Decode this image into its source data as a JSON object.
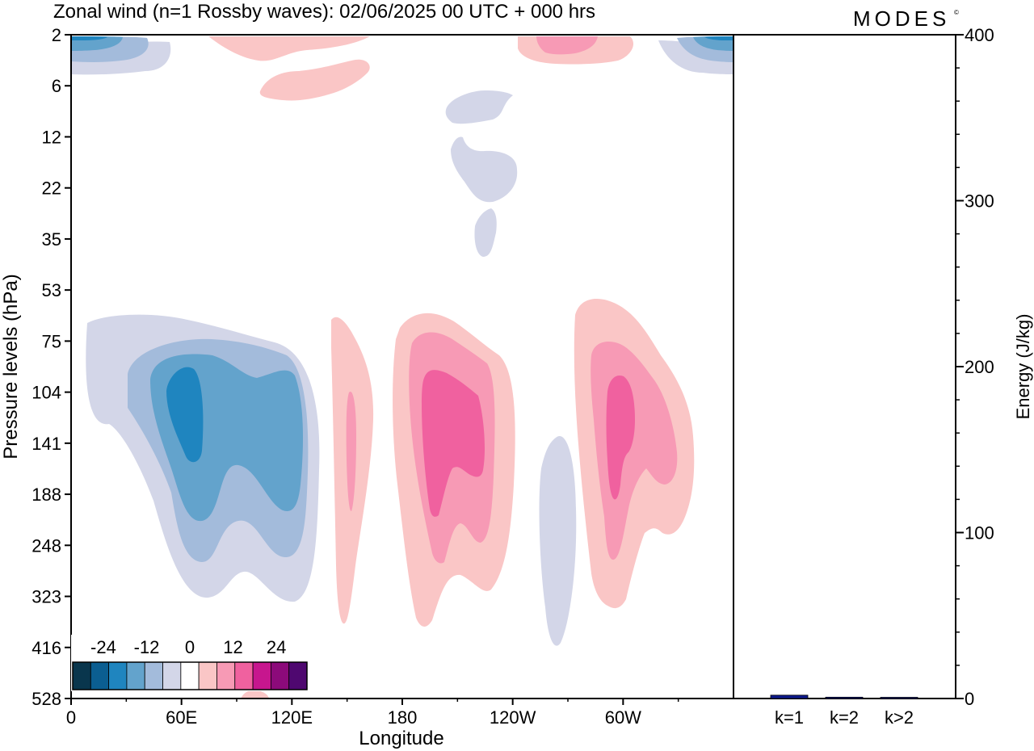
{
  "title": "Zonal wind (n=1 Rossby waves):  02/06/2025  00 UTC  + 000 hrs",
  "logo": {
    "text": "MODES",
    "mark": "©"
  },
  "colors": {
    "levels": [
      -30,
      -25,
      -20,
      -15,
      -10,
      -5,
      0,
      5,
      10,
      15,
      20,
      25,
      30
    ],
    "fills": [
      "#09364d",
      "#0b5e91",
      "#1f85bf",
      "#63a3cc",
      "#a3bbdb",
      "#d3d6e8",
      "#ffffff",
      "#fac6c6",
      "#f79ab5",
      "#f0619f",
      "#c7168e",
      "#8c0a7a",
      "#4f0870"
    ],
    "bar": "#0d1a8c"
  },
  "chart_data": [
    {
      "type": "heatmap",
      "field": "zonal wind",
      "xlabel": "Longitude",
      "ylabel": "Pressure levels (hPa)",
      "x_ticks": [
        "0",
        "60E",
        "120E",
        "180",
        "120W",
        "60W"
      ],
      "x_tick_values": [
        0,
        60,
        120,
        180,
        240,
        300
      ],
      "xlim": [
        0,
        360
      ],
      "y_ticks": [
        "2",
        "6",
        "12",
        "22",
        "35",
        "53",
        "75",
        "104",
        "141",
        "188",
        "248",
        "323",
        "416",
        "528"
      ],
      "colorbar": {
        "tick_labels": [
          "-24",
          "-12",
          "0",
          "12",
          "24"
        ],
        "tick_values": [
          -24,
          -12,
          0,
          12,
          24
        ]
      },
      "features": [
        {
          "sign": "negative",
          "center_lon": 60,
          "center_p": 141,
          "peak": -17
        },
        {
          "sign": "negative",
          "center_lon": 112,
          "center_p": 141,
          "peak": -13
        },
        {
          "sign": "positive",
          "center_lon": 152,
          "center_p": 141,
          "peak": 11
        },
        {
          "sign": "positive",
          "center_lon": 205,
          "center_p": 141,
          "peak": 17
        },
        {
          "sign": "negative",
          "center_lon": 263,
          "center_p": 248,
          "peak": -6
        },
        {
          "sign": "positive",
          "center_lon": 298,
          "center_p": 141,
          "peak": 17
        },
        {
          "sign": "negative",
          "center_lon": 10,
          "center_p": 2,
          "peak": -14
        },
        {
          "sign": "negative",
          "center_lon": 355,
          "center_p": 2,
          "peak": -14
        },
        {
          "sign": "positive",
          "center_lon": 267,
          "center_p": 2,
          "peak": 12
        },
        {
          "sign": "positive",
          "center_lon": 108,
          "center_p": 2,
          "peak": 7
        },
        {
          "sign": "positive",
          "center_lon": 122,
          "center_p": 5,
          "peak": 7
        },
        {
          "sign": "negative",
          "center_lon": 218,
          "center_p": 8,
          "peak": -6
        },
        {
          "sign": "negative",
          "center_lon": 228,
          "center_p": 18,
          "peak": -6
        },
        {
          "sign": "negative",
          "center_lon": 225,
          "center_p": 35,
          "peak": -6
        },
        {
          "sign": "positive",
          "center_lon": 100,
          "center_p": 528,
          "peak": 6
        }
      ]
    },
    {
      "type": "bar",
      "ylabel": "Energy (J/kg)",
      "ylim": [
        0,
        400
      ],
      "y_ticks": [
        "0",
        "100",
        "200",
        "300",
        "400"
      ],
      "categories": [
        "k=1",
        "k=2",
        "k>2"
      ],
      "values": [
        2,
        0.8,
        0.5
      ]
    }
  ]
}
